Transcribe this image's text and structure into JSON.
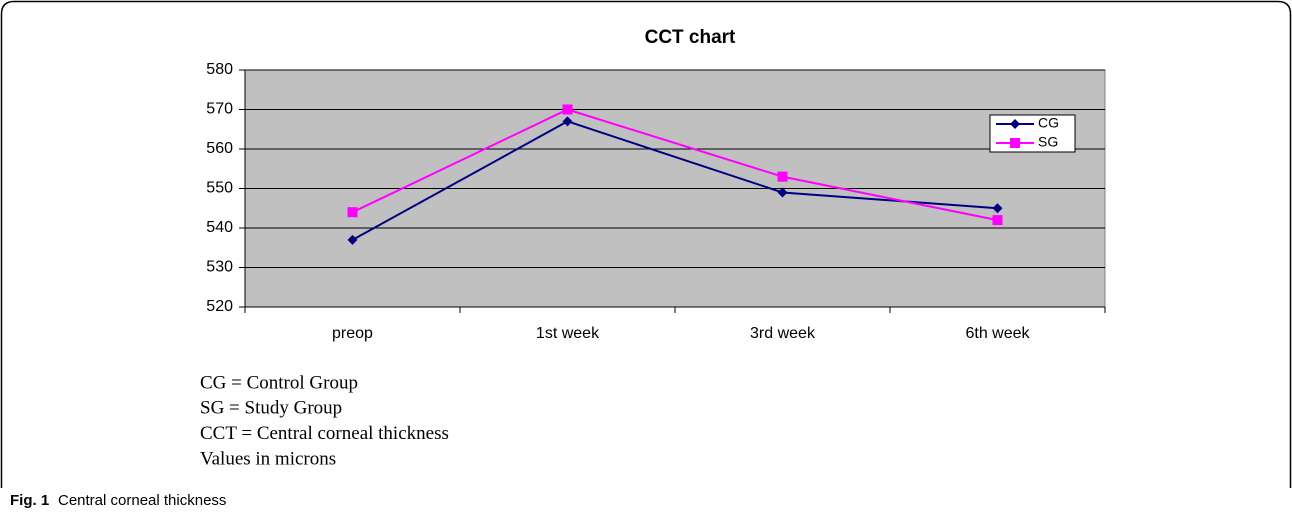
{
  "chart_data": {
    "type": "line",
    "title": "CCT chart",
    "categories": [
      "preop",
      "1st week",
      "3rd week",
      "6th week"
    ],
    "series": [
      {
        "name": "CG",
        "color": "#000080",
        "marker": "diamond",
        "values": [
          537,
          567,
          549,
          545
        ]
      },
      {
        "name": "SG",
        "color": "#ff00ff",
        "marker": "square",
        "values": [
          544,
          570,
          553,
          542
        ]
      }
    ],
    "ylim": [
      520,
      580
    ],
    "yticks": [
      520,
      530,
      540,
      550,
      560,
      570,
      580
    ],
    "grid": true,
    "plot_background": "#c0c0c0",
    "legend": "upper right",
    "notes": [
      "CG = Control Group",
      "SG = Study Group",
      "CCT = Central corneal thickness",
      "Values in microns"
    ]
  },
  "caption": {
    "label": "Fig. 1",
    "text": "Central corneal thickness"
  }
}
